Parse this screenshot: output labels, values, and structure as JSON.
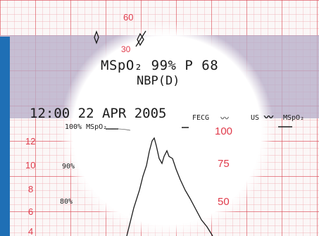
{
  "photo": {
    "upper_grid_labels": [
      "60",
      "30"
    ],
    "left_scale_labels": [
      "12",
      "10",
      "8",
      "6",
      "4"
    ],
    "right_scale_labels": [
      "100",
      "75",
      "50"
    ],
    "readout": {
      "line1": "MSpO₂   99%  P 68",
      "line2": "NBP(D)",
      "datetime": "12:00  22 APR 2005",
      "fecg_label": "FECG",
      "us_label": "US",
      "mspo2_label": "MSpO₂",
      "trace_header": "100% MSpO₂",
      "pct_90": "90%",
      "pct_80": "80%"
    },
    "colors": {
      "grid_red": "#e03a4a",
      "band_purple": "#b7aec9",
      "edge_blue": "#1f6fb5",
      "spotlight": "#ffffff",
      "ink": "#1a1a1a"
    }
  }
}
